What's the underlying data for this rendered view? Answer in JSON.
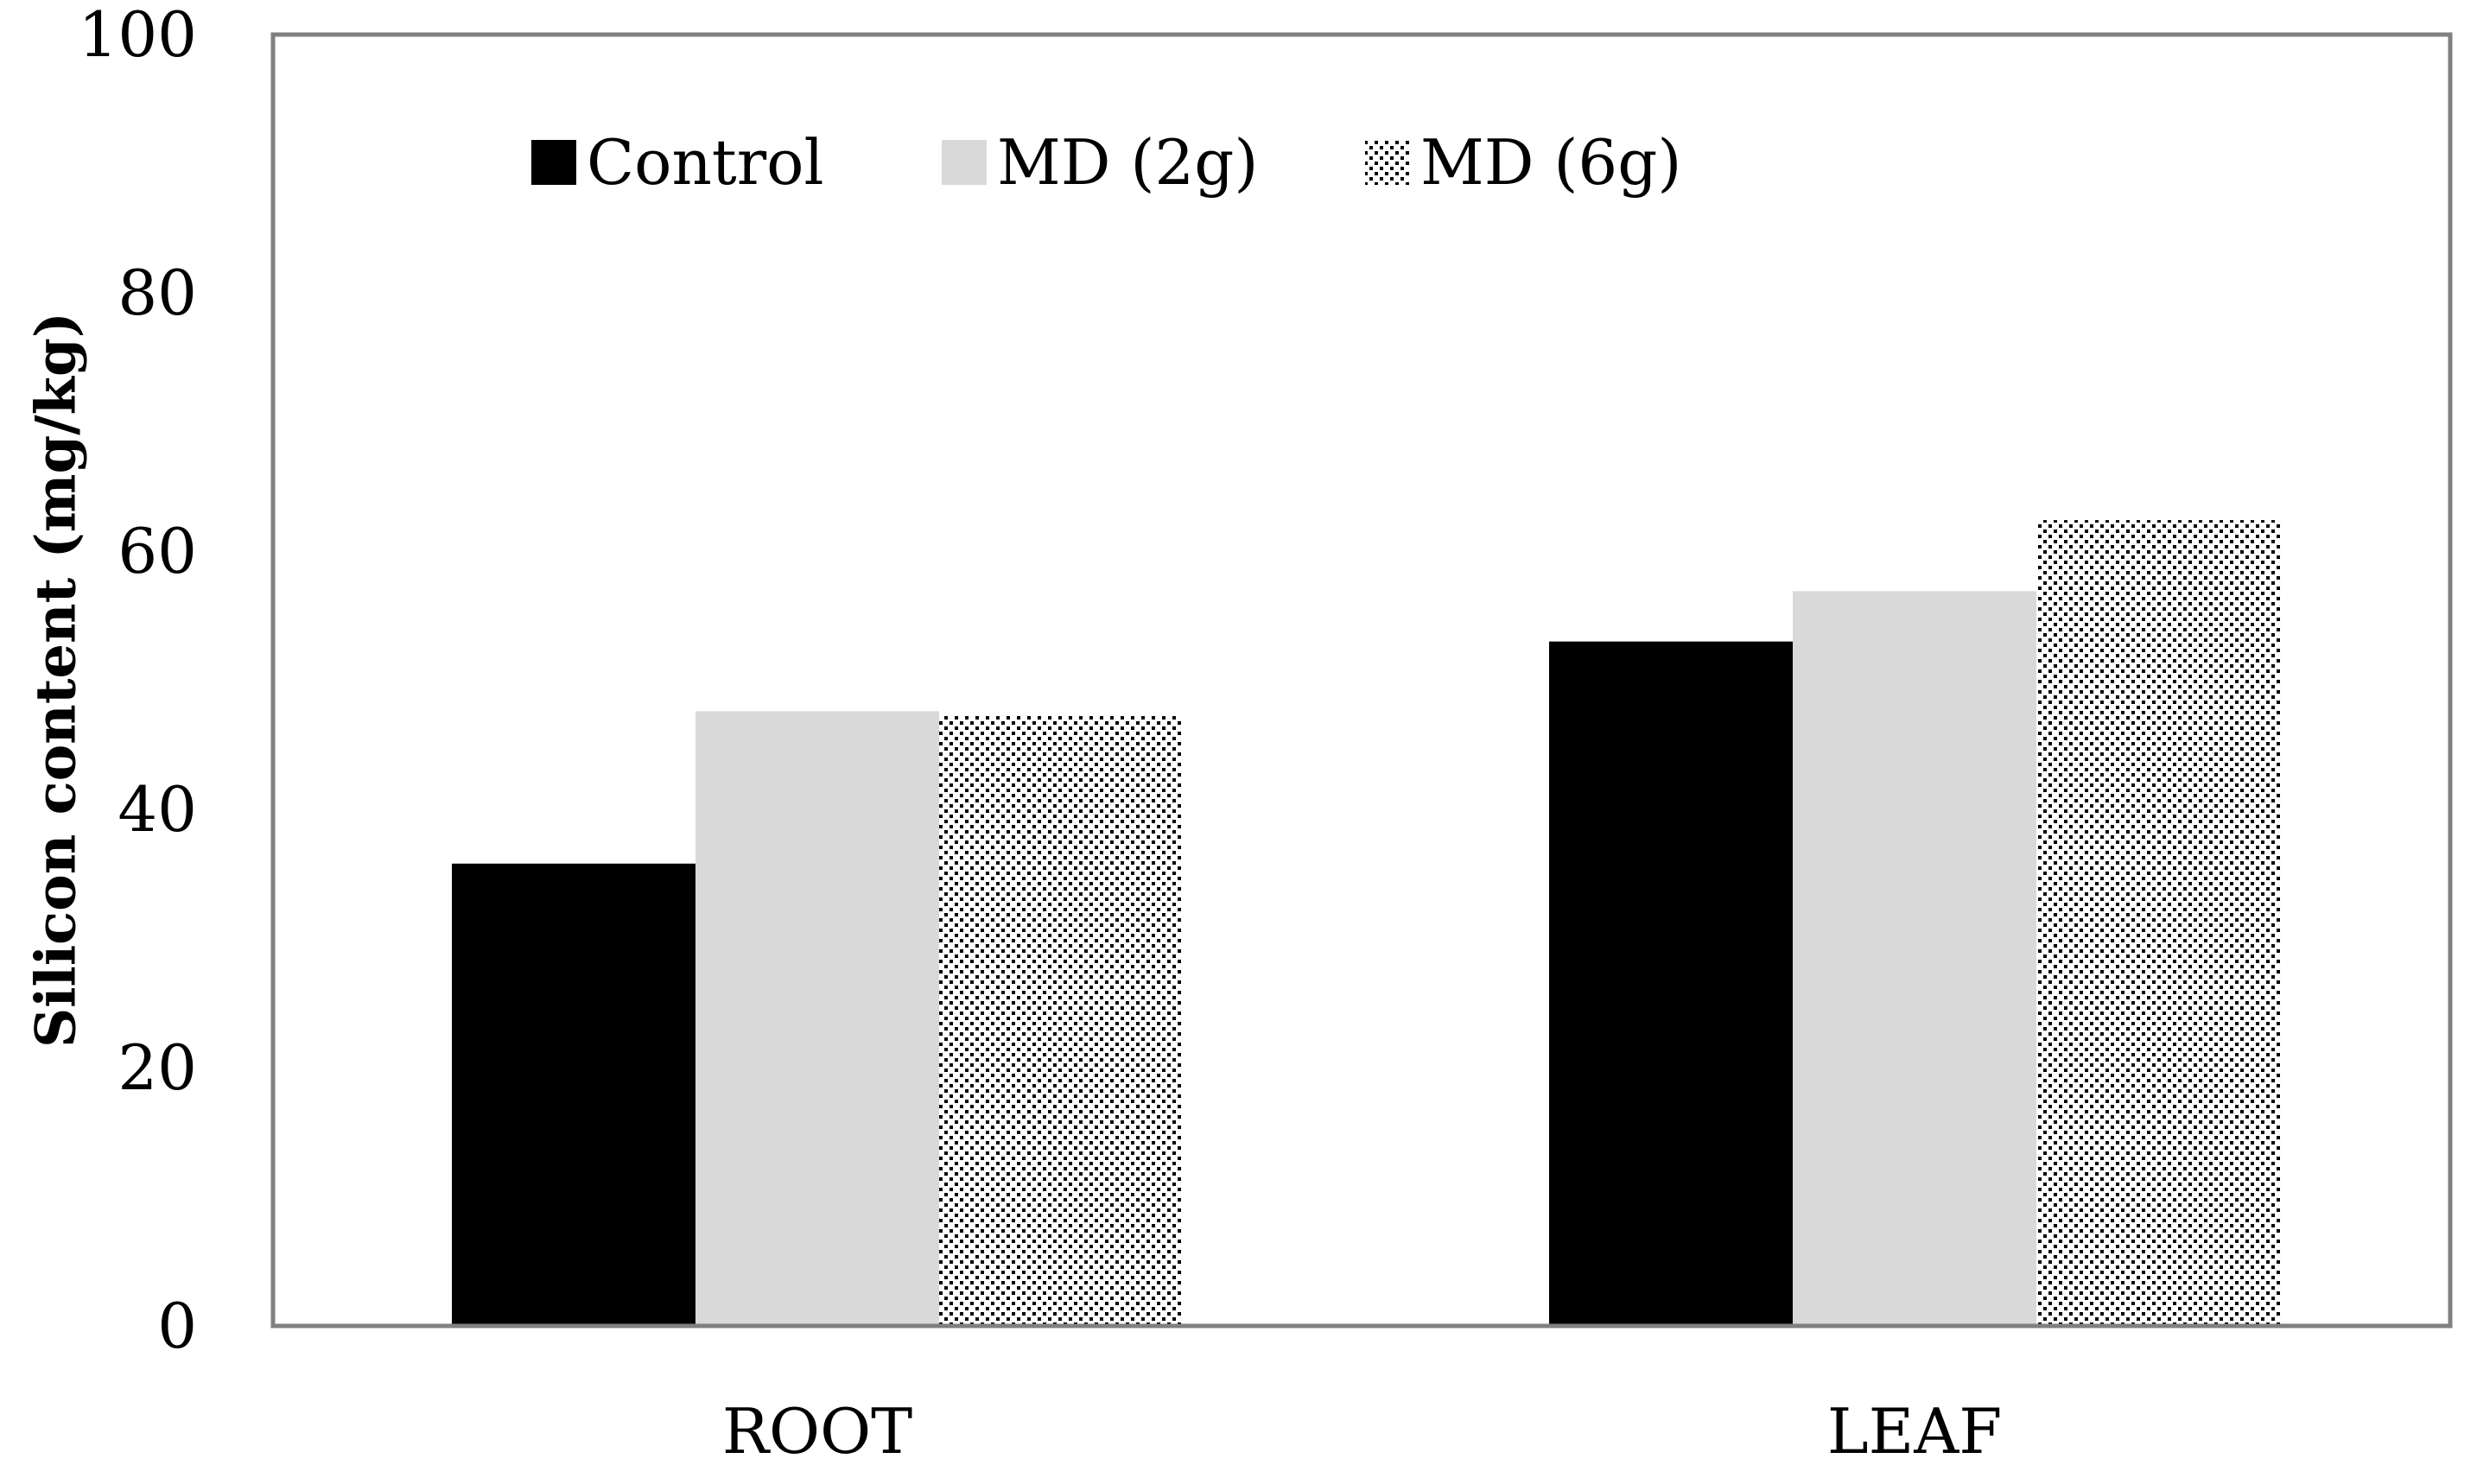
{
  "chart_data": {
    "type": "bar",
    "title": "",
    "xlabel": "",
    "ylabel": "Silicon content (mg/kg)",
    "categories": [
      "ROOT",
      "LEAF"
    ],
    "series": [
      {
        "name": "Control",
        "values": [
          35.8,
          53.0
        ],
        "color": "#000000",
        "pattern": "solid"
      },
      {
        "name": "MD (2g)",
        "values": [
          47.6,
          56.9
        ],
        "color": "#d9d9d9",
        "pattern": "solid"
      },
      {
        "name": "MD (6g)",
        "values": [
          47.3,
          62.4
        ],
        "color": "#000000",
        "pattern": "dots"
      }
    ],
    "ylim": [
      0,
      100
    ],
    "yticks": [
      0,
      20,
      40,
      60,
      80,
      100
    ],
    "ytick_labels": [
      "0",
      "20",
      "40",
      "60",
      "80",
      "100"
    ],
    "grid": false,
    "legend_position": "top-left"
  }
}
